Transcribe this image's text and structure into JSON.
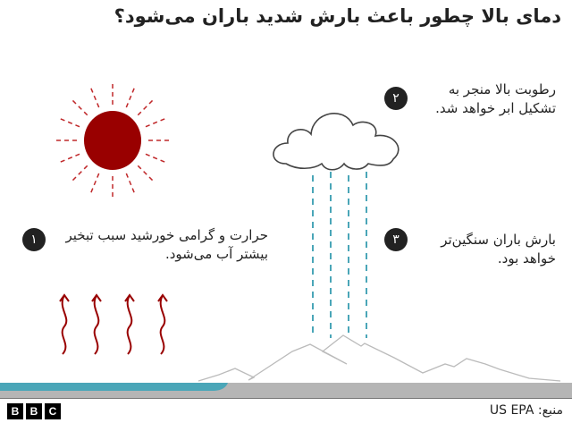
{
  "title": "دمای بالا چطور باعث بارش شدید باران می‌شود؟",
  "steps": [
    {
      "number": "۱",
      "text": "حرارت و گرامی خورشید سبب تبخیر بیشتر آب می‌شود."
    },
    {
      "number": "۲",
      "text": "رطوبت بالا منجر به تشکیل ابر خواهد شد."
    },
    {
      "number": "۳",
      "text": "بارش باران سنگین‌تر خواهد بود."
    }
  ],
  "footer": {
    "logo": "BBC",
    "source": "منبع: US EPA"
  },
  "colors": {
    "sun": "#990000",
    "rain": "#4aa6b8",
    "water": "#4aa6b8",
    "ground": "#b5b5b5",
    "mountain": "#bbbbbb"
  }
}
